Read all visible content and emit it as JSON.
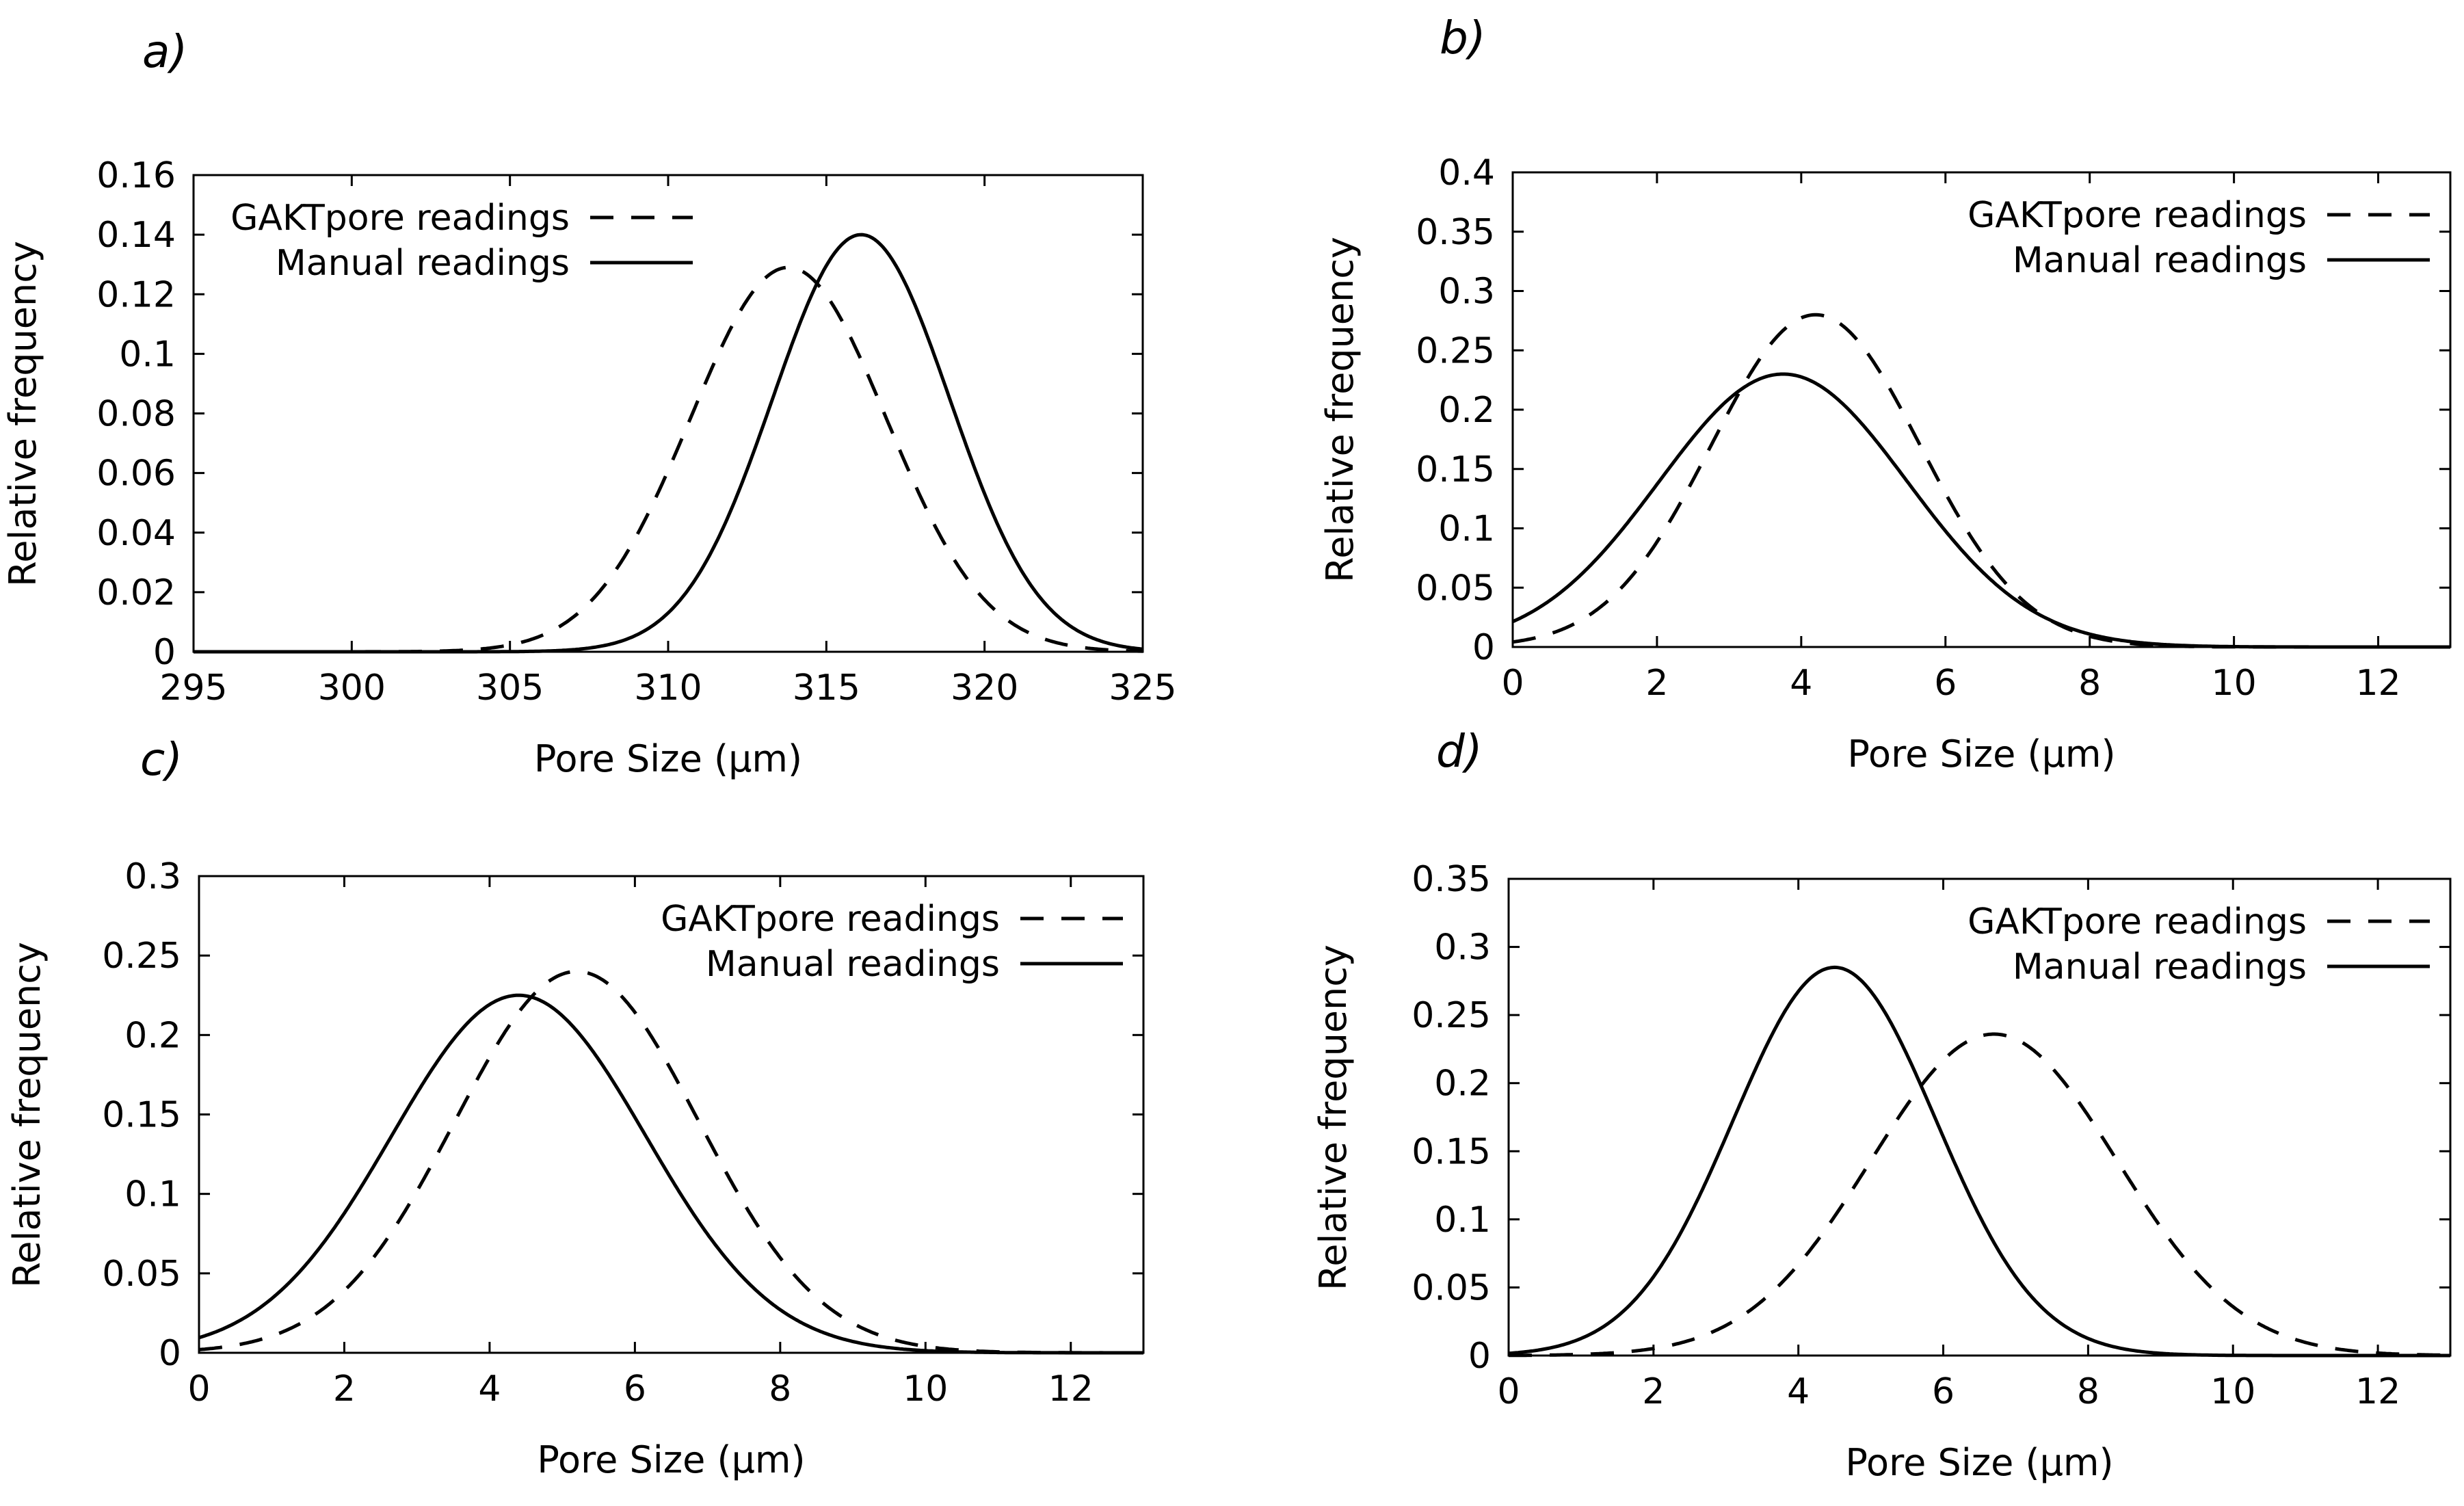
{
  "chart_data": [
    {
      "panel": "a)",
      "type": "line",
      "xlabel": "Pore Size (µm)",
      "ylabel": "Relative frequency",
      "xlim": [
        295,
        325
      ],
      "ylim": [
        0,
        0.16
      ],
      "xticks": [
        "295",
        "300",
        "305",
        "310",
        "315",
        "320",
        "325"
      ],
      "yticks": [
        "0",
        "0.02",
        "0.04",
        "0.06",
        "0.08",
        "0.1",
        "0.12",
        "0.14",
        "0.16"
      ],
      "grid": false,
      "legend_position": "top-left",
      "series": [
        {
          "name": "GAKTpore readings",
          "style": "dashed",
          "distribution": "gaussian",
          "mean": 313.8,
          "sd": 3.1,
          "peak": 0.129
        },
        {
          "name": "Manual readings",
          "style": "solid",
          "distribution": "gaussian",
          "mean": 316.1,
          "sd": 2.8,
          "peak": 0.14
        }
      ]
    },
    {
      "panel": "b)",
      "type": "line",
      "xlabel": "Pore Size (µm)",
      "ylabel": "Relative frequency",
      "xlim": [
        0,
        13
      ],
      "ylim": [
        0,
        0.4
      ],
      "xticks": [
        "0",
        "2",
        "4",
        "6",
        "8",
        "10",
        "12"
      ],
      "yticks": [
        "0",
        "0.05",
        "0.1",
        "0.15",
        "0.2",
        "0.25",
        "0.3",
        "0.35",
        "0.4"
      ],
      "grid": false,
      "legend_position": "top-right",
      "series": [
        {
          "name": "GAKTpore readings",
          "style": "dashed",
          "distribution": "gaussian",
          "mean": 4.2,
          "sd": 1.45,
          "peak": 0.28
        },
        {
          "name": "Manual readings",
          "style": "solid",
          "distribution": "gaussian",
          "mean": 3.75,
          "sd": 1.72,
          "peak": 0.23
        }
      ]
    },
    {
      "panel": "c)",
      "type": "line",
      "xlabel": "Pore Size (µm)",
      "ylabel": "Relative frequency",
      "xlim": [
        0,
        13
      ],
      "ylim": [
        0,
        0.3
      ],
      "xticks": [
        "0",
        "2",
        "4",
        "6",
        "8",
        "10",
        "12"
      ],
      "yticks": [
        "0",
        "0.05",
        "0.1",
        "0.15",
        "0.2",
        "0.25",
        "0.3"
      ],
      "grid": false,
      "legend_position": "top-right",
      "series": [
        {
          "name": "GAKTpore readings",
          "style": "dashed",
          "distribution": "gaussian",
          "mean": 5.2,
          "sd": 1.68,
          "peak": 0.24
        },
        {
          "name": "Manual readings",
          "style": "solid",
          "distribution": "gaussian",
          "mean": 4.4,
          "sd": 1.75,
          "peak": 0.225
        }
      ]
    },
    {
      "panel": "d)",
      "type": "line",
      "xlabel": "Pore Size (µm)",
      "ylabel": "Relative frequency",
      "xlim": [
        0,
        13
      ],
      "ylim": [
        0,
        0.35
      ],
      "xticks": [
        "0",
        "2",
        "4",
        "6",
        "8",
        "10",
        "12"
      ],
      "yticks": [
        "0",
        "0.05",
        "0.1",
        "0.15",
        "0.2",
        "0.25",
        "0.3",
        "0.35"
      ],
      "grid": false,
      "legend_position": "top-right",
      "series": [
        {
          "name": "GAKTpore readings",
          "style": "dashed",
          "distribution": "gaussian",
          "mean": 6.7,
          "sd": 1.7,
          "peak": 0.236
        },
        {
          "name": "Manual readings",
          "style": "solid",
          "distribution": "gaussian",
          "mean": 4.5,
          "sd": 1.4,
          "peak": 0.285
        }
      ]
    }
  ]
}
